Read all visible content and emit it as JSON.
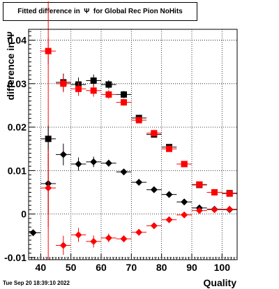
{
  "title_box": {
    "text": "Fitted difference in  Ψ  for Global Rec Pion NoHits"
  },
  "footer": {
    "timestamp": "Tue Sep 20 18:39:10 2022"
  },
  "chart_data": {
    "type": "scatter",
    "title": "Fitted difference in  Ψ  for Global Rec Pion NoHits",
    "xlabel": "Quality",
    "ylabel": "difference in  Ψ",
    "xlim": [
      36,
      105
    ],
    "ylim": [
      -0.0105,
      0.0425
    ],
    "x_ticks": [
      40,
      50,
      60,
      70,
      80,
      90,
      100
    ],
    "y_ticks": [
      -0.01,
      0,
      0.01,
      0.02,
      0.03,
      0.04
    ],
    "y_tick_labels": [
      "-0.01",
      "0",
      "0.01",
      "0.02",
      "0.03",
      "0.04"
    ],
    "grid": true,
    "red_vertical_line_x": 42.5,
    "series": [
      {
        "marker": "square",
        "color": "#000000",
        "x": [
          42.5,
          47.5,
          52.5,
          57.5,
          62.5,
          67.5,
          72.5,
          77.5,
          82.5,
          87.5,
          92.5,
          97.5,
          102.5
        ],
        "y": [
          0.0173,
          0.0303,
          0.0298,
          0.0307,
          0.0298,
          0.0275,
          0.0221,
          0.0183,
          0.0154,
          0.0115,
          0.0067,
          0.005,
          0.0048
        ],
        "yerr": [
          0.003,
          0.002,
          0.0016,
          0.0014,
          0.001,
          0.0008,
          0.0006,
          0.0006,
          0.0005,
          0.0004,
          0.0003,
          0.0003,
          0.0003
        ]
      },
      {
        "marker": "square",
        "color": "#ff0000",
        "x": [
          42.5,
          47.5,
          52.5,
          57.5,
          62.5,
          67.5,
          72.5,
          77.5,
          82.5,
          87.5,
          92.5,
          97.5,
          102.5
        ],
        "y": [
          0.0375,
          0.03,
          0.0288,
          0.0284,
          0.0275,
          0.0257,
          0.0216,
          0.0186,
          0.015,
          0.0115,
          0.0068,
          0.005,
          0.0047
        ],
        "yerr": [
          0.003,
          0.002,
          0.0016,
          0.0014,
          0.001,
          0.0008,
          0.0006,
          0.0006,
          0.0005,
          0.0004,
          0.0003,
          0.0003,
          0.0003
        ]
      },
      {
        "marker": "diamond",
        "color": "#000000",
        "x": [
          37.5,
          42.5,
          47.5,
          52.5,
          57.5,
          62.5,
          67.5,
          72.5,
          77.5,
          82.5,
          87.5,
          92.5,
          97.5,
          102.5
        ],
        "y": [
          -0.0043,
          0.007,
          0.0137,
          0.0115,
          0.012,
          0.0117,
          0.0097,
          0.0073,
          0.0056,
          0.0045,
          0.0028,
          0.0014,
          0.0011,
          0.001
        ],
        "yerr": [
          0.0,
          0.007,
          0.0025,
          0.0015,
          0.0012,
          0.0008,
          0.0006,
          0.0005,
          0.0004,
          0.0004,
          0.0003,
          0.0003,
          0.0003,
          0.0003
        ]
      },
      {
        "marker": "diamond",
        "color": "#ff0000",
        "x": [
          42.5,
          47.5,
          52.5,
          57.5,
          62.5,
          67.5,
          72.5,
          77.5,
          82.5,
          87.5,
          92.5,
          97.5,
          102.5
        ],
        "y": [
          0.006,
          -0.0072,
          -0.0048,
          -0.0063,
          -0.0055,
          -0.0057,
          -0.0042,
          -0.0027,
          -0.0013,
          -0.0002,
          0.0008,
          0.001,
          0.0011
        ],
        "yerr": [
          0.009,
          0.0022,
          0.0016,
          0.0014,
          0.001,
          0.0008,
          0.0006,
          0.0005,
          0.0004,
          0.0004,
          0.0003,
          0.0003,
          0.0003
        ]
      }
    ]
  }
}
